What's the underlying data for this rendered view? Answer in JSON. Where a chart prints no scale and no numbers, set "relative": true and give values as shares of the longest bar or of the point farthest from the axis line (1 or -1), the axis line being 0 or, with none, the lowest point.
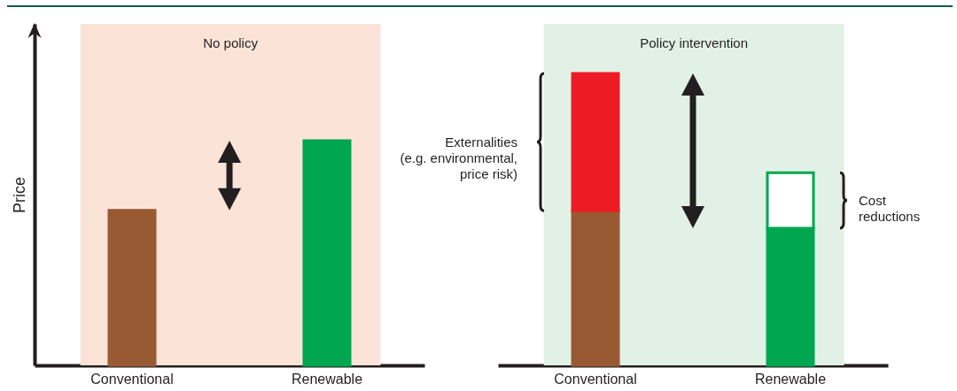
{
  "chart_data": [
    {
      "type": "bar",
      "relative": true,
      "categories": [
        "Conventional",
        "Renewable"
      ],
      "values": [
        0.69,
        1
      ],
      "colors": [
        "#985a33",
        "#00a650"
      ],
      "ylabel": "Price",
      "tick_labels": "x",
      "bands": [
        {
          "axis": "x",
          "from": "Conventional",
          "to": "Renewable",
          "label": "No policy",
          "color": "#fbe3d8"
        }
      ]
    },
    {
      "type": "bar",
      "relative": true,
      "stacked": true,
      "categories": [
        "Conventional",
        "Renewable"
      ],
      "tick_labels": "x",
      "series": [
        {
          "color": "#985a33",
          "values": [
            0.53,
            null
          ]
        },
        {
          "color": "#ed1c24",
          "values": [
            0.47,
            null
          ]
        },
        {
          "color": "#00a650",
          "values": [
            null,
            0.47
          ]
        },
        {
          "color": "#ffffff",
          "values": [
            null,
            0.19
          ]
        }
      ],
      "bands": [
        {
          "axis": "x",
          "from": "Conventional",
          "to": "Renewable",
          "label": "Policy intervention",
          "color": "#e1f1e5"
        }
      ],
      "annotations": [
        "Externalities\n(e.g. environmental,\nprice risk)",
        "Cost\nreductions"
      ]
    }
  ]
}
